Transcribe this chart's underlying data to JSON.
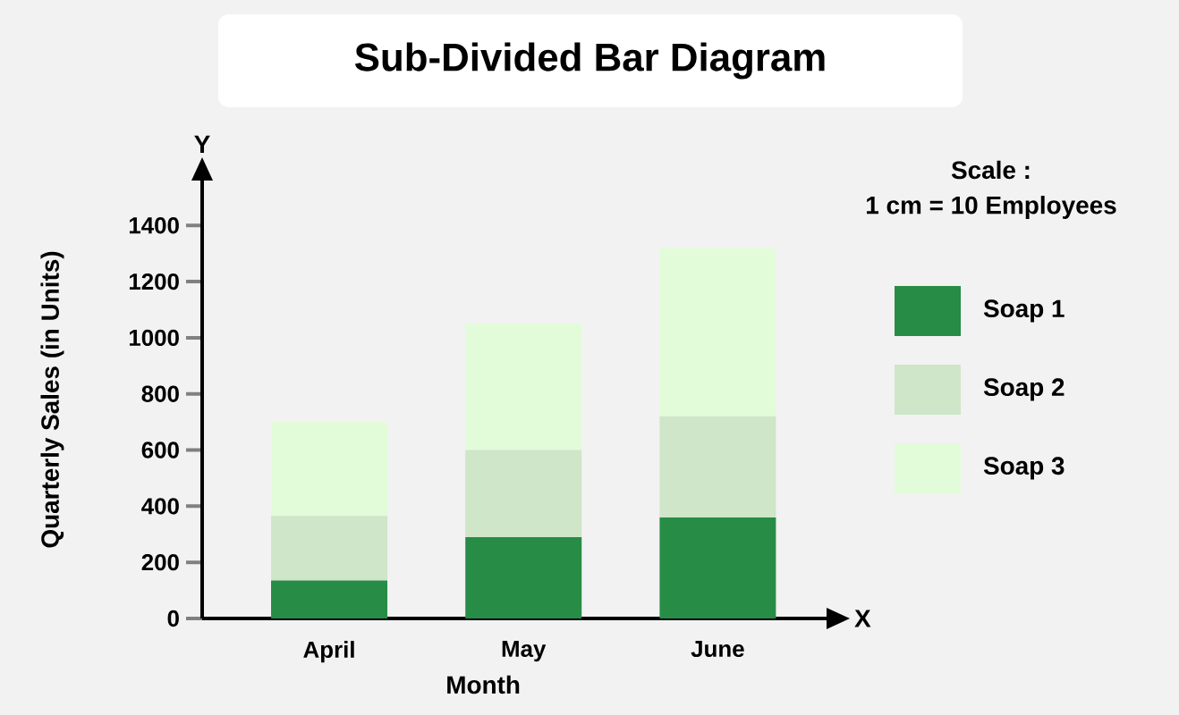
{
  "chart_data": {
    "type": "bar",
    "stacked": true,
    "title": "Sub-Divided Bar Diagram",
    "xlabel": "Month",
    "ylabel": "Quarterly Sales (in Units)",
    "categories": [
      "April",
      "May",
      "June"
    ],
    "series": [
      {
        "name": "Soap 1",
        "color": "#268c46",
        "values": [
          135,
          290,
          360
        ]
      },
      {
        "name": "Soap 2",
        "color": "#cfe6c8",
        "values": [
          230,
          310,
          360
        ]
      },
      {
        "name": "Soap 3",
        "color": "#e2fcd9",
        "values": [
          335,
          450,
          600
        ]
      }
    ],
    "ylim": [
      0,
      1560
    ],
    "yticks": [
      0,
      200,
      400,
      600,
      800,
      1000,
      1200,
      1400
    ],
    "legend": "right",
    "grid": false,
    "annotations": [
      "Scale :",
      "1 cm = 10 Employees",
      "X",
      "Y"
    ]
  }
}
